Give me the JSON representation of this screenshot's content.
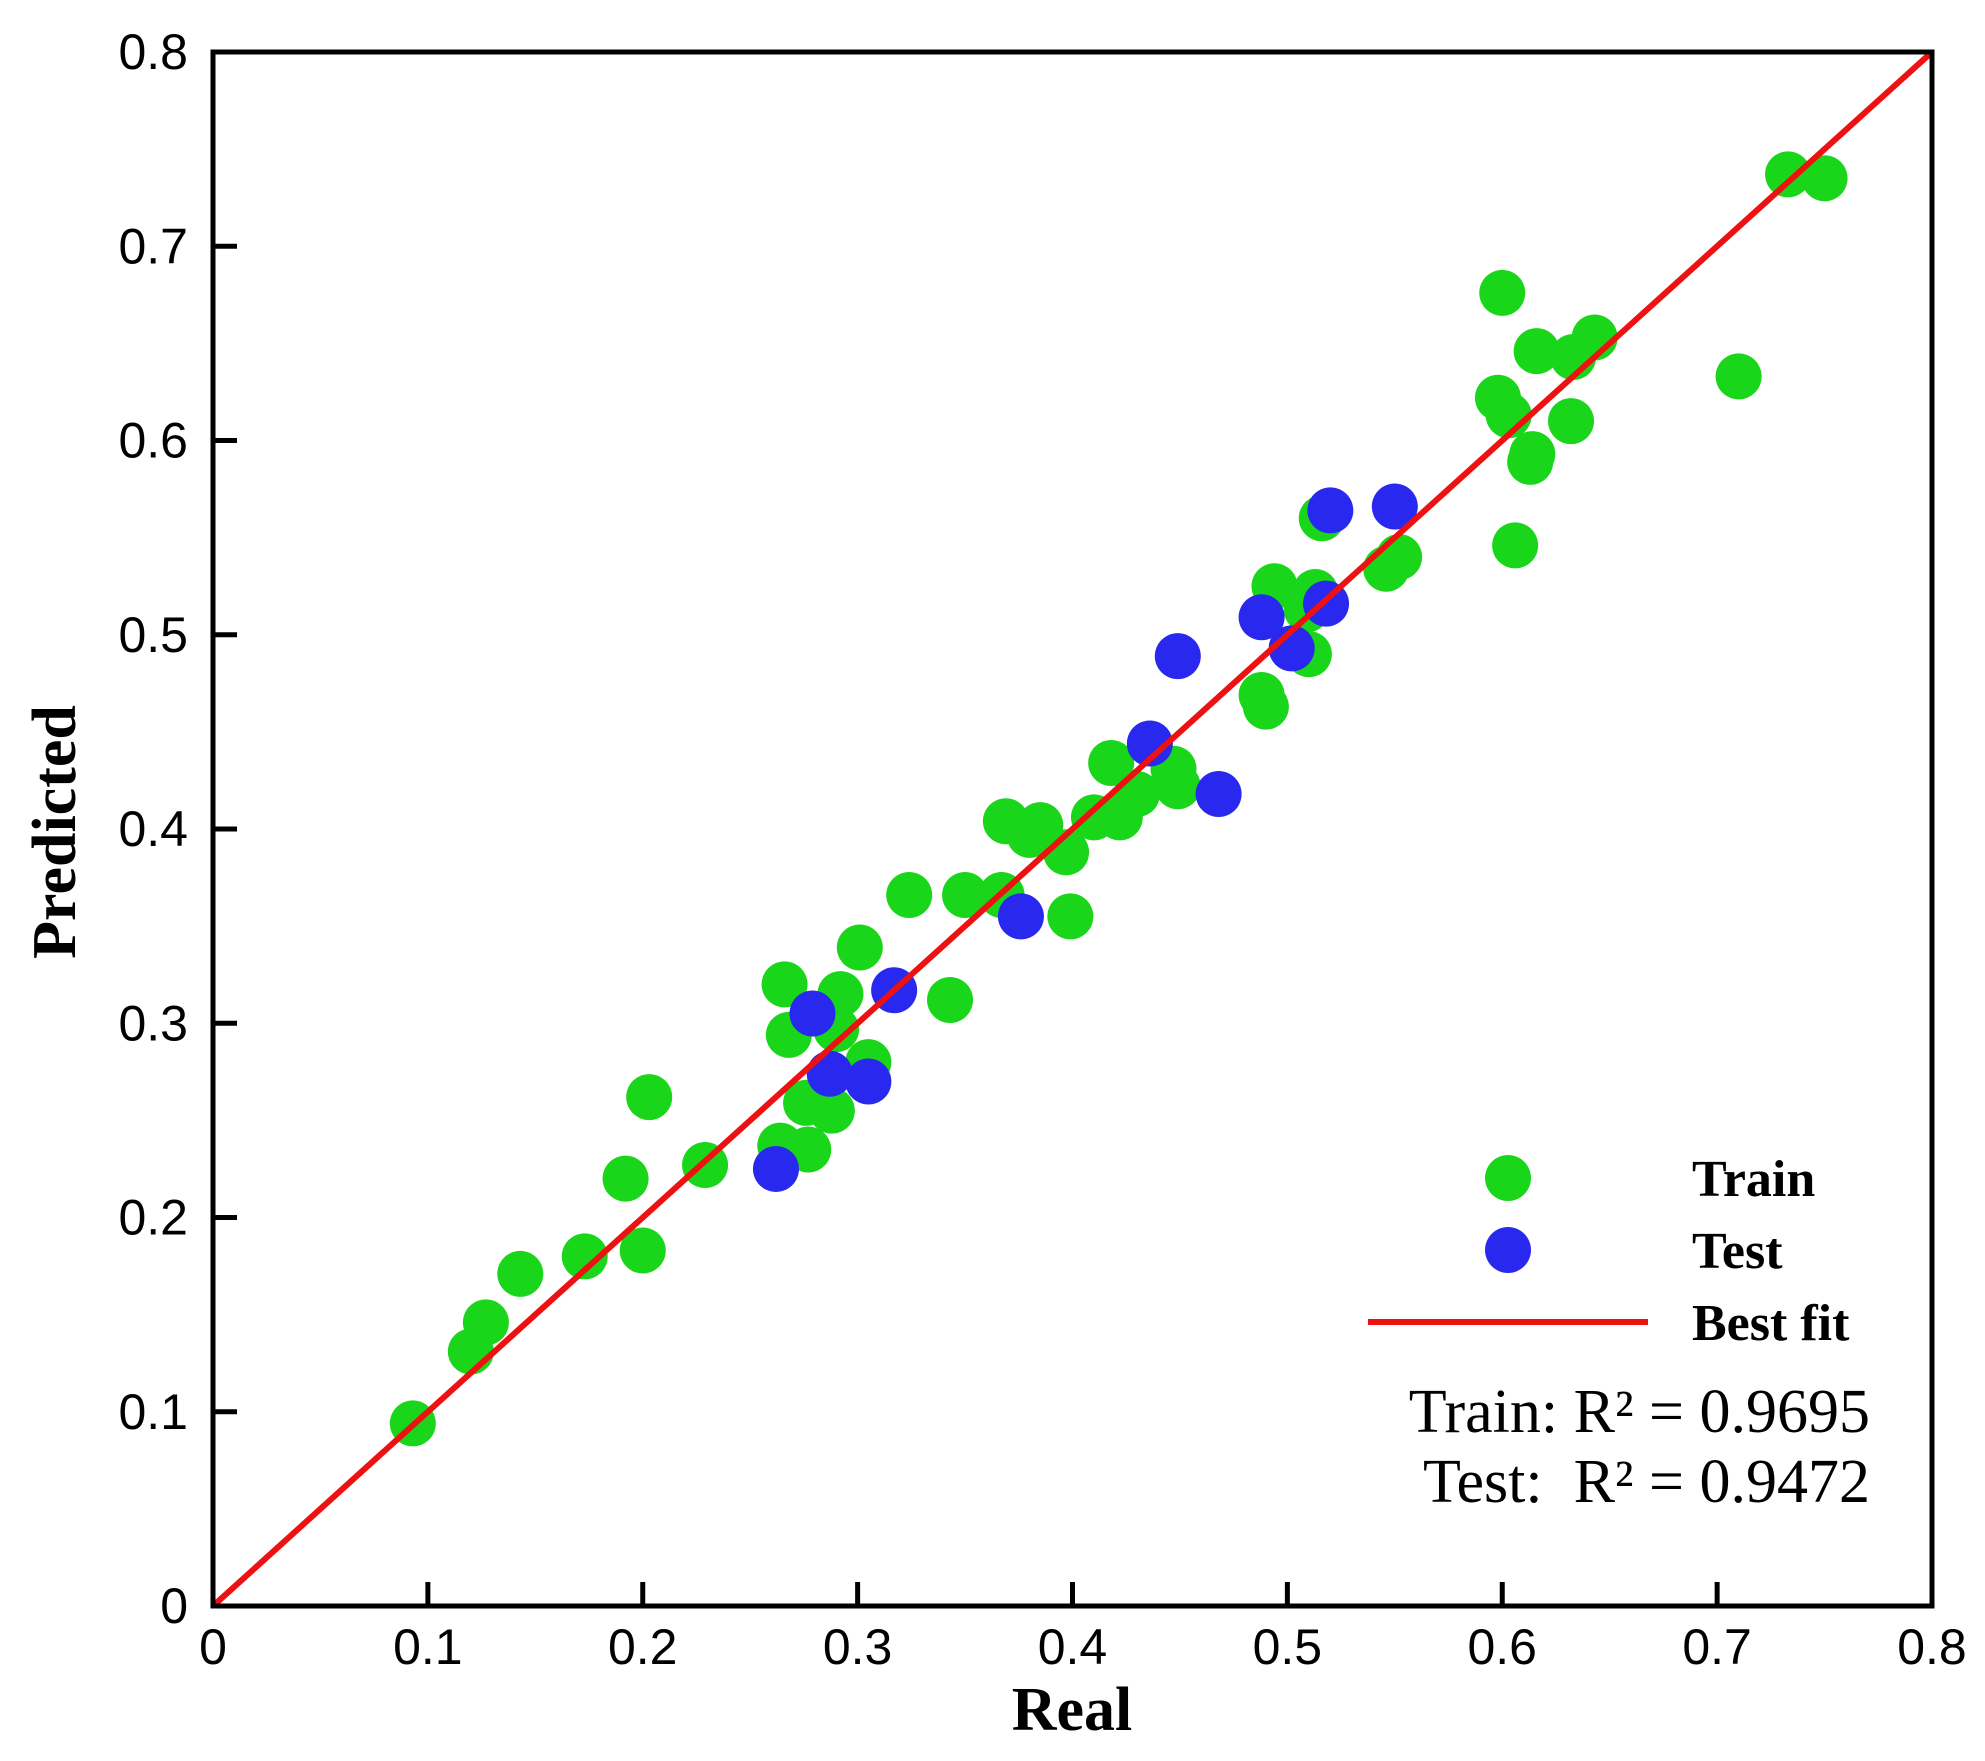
{
  "chart_data": {
    "type": "scatter",
    "title": "",
    "xlabel": "Real",
    "ylabel": "Predicted",
    "xlim": [
      0,
      0.8
    ],
    "ylim": [
      0,
      0.8
    ],
    "xticks": [
      "0",
      "0.1",
      "0.2",
      "0.3",
      "0.4",
      "0.5",
      "0.6",
      "0.7",
      "0.8"
    ],
    "yticks": [
      "0",
      "0.1",
      "0.2",
      "0.3",
      "0.4",
      "0.5",
      "0.6",
      "0.7",
      "0.8"
    ],
    "grid": false,
    "legend_position": "bottom-right",
    "series": [
      {
        "name": "Train",
        "type": "scatter",
        "color": "#1ad61a",
        "points": [
          [
            0.093,
            0.094
          ],
          [
            0.12,
            0.131
          ],
          [
            0.127,
            0.146
          ],
          [
            0.143,
            0.171
          ],
          [
            0.173,
            0.18
          ],
          [
            0.192,
            0.22
          ],
          [
            0.2,
            0.183
          ],
          [
            0.203,
            0.262
          ],
          [
            0.229,
            0.227
          ],
          [
            0.264,
            0.237
          ],
          [
            0.268,
            0.294
          ],
          [
            0.266,
            0.32
          ],
          [
            0.276,
            0.259
          ],
          [
            0.277,
            0.235
          ],
          [
            0.288,
            0.255
          ],
          [
            0.29,
            0.297
          ],
          [
            0.292,
            0.315
          ],
          [
            0.301,
            0.339
          ],
          [
            0.305,
            0.28
          ],
          [
            0.324,
            0.366
          ],
          [
            0.343,
            0.312
          ],
          [
            0.35,
            0.366
          ],
          [
            0.367,
            0.366
          ],
          [
            0.369,
            0.404
          ],
          [
            0.38,
            0.397
          ],
          [
            0.385,
            0.402
          ],
          [
            0.397,
            0.388
          ],
          [
            0.399,
            0.355
          ],
          [
            0.41,
            0.406
          ],
          [
            0.418,
            0.434
          ],
          [
            0.422,
            0.406
          ],
          [
            0.43,
            0.418
          ],
          [
            0.447,
            0.431
          ],
          [
            0.449,
            0.422
          ],
          [
            0.488,
            0.469
          ],
          [
            0.49,
            0.463
          ],
          [
            0.494,
            0.525
          ],
          [
            0.509,
            0.513
          ],
          [
            0.51,
            0.49
          ],
          [
            0.513,
            0.522
          ],
          [
            0.516,
            0.56
          ],
          [
            0.546,
            0.534
          ],
          [
            0.552,
            0.54
          ],
          [
            0.598,
            0.622
          ],
          [
            0.6,
            0.676
          ],
          [
            0.603,
            0.613
          ],
          [
            0.606,
            0.546
          ],
          [
            0.613,
            0.589
          ],
          [
            0.614,
            0.593
          ],
          [
            0.616,
            0.646
          ],
          [
            0.632,
            0.61
          ],
          [
            0.633,
            0.643
          ],
          [
            0.643,
            0.653
          ],
          [
            0.71,
            0.633
          ],
          [
            0.733,
            0.737
          ],
          [
            0.75,
            0.735
          ]
        ]
      },
      {
        "name": "Test",
        "type": "scatter",
        "color": "#2828ee",
        "points": [
          [
            0.262,
            0.225
          ],
          [
            0.279,
            0.305
          ],
          [
            0.287,
            0.274
          ],
          [
            0.305,
            0.27
          ],
          [
            0.317,
            0.317
          ],
          [
            0.376,
            0.355
          ],
          [
            0.436,
            0.444
          ],
          [
            0.449,
            0.489
          ],
          [
            0.468,
            0.418
          ],
          [
            0.488,
            0.509
          ],
          [
            0.502,
            0.493
          ],
          [
            0.518,
            0.516
          ],
          [
            0.52,
            0.564
          ],
          [
            0.55,
            0.566
          ]
        ]
      },
      {
        "name": "Best fit",
        "type": "line",
        "color": "#ee1111",
        "points": [
          [
            0,
            0
          ],
          [
            0.8,
            0.8
          ]
        ]
      }
    ],
    "annotations": [
      "Train: R² = 0.9695",
      "Test:  R² = 0.9472"
    ]
  }
}
